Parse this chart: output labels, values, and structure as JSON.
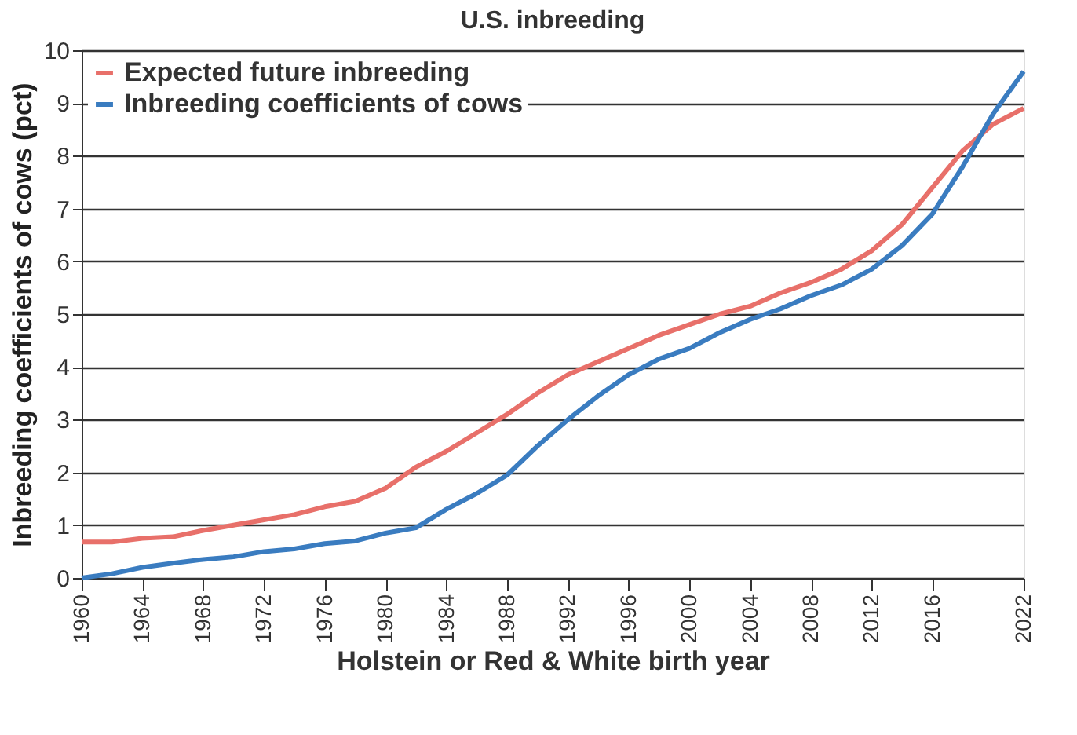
{
  "chart_data": {
    "type": "line",
    "title": "U.S. inbreeding",
    "xlabel": "Holstein or Red & White birth year",
    "ylabel": "Inbreeding coefficients of cows (pct)",
    "x": [
      1960,
      1962,
      1964,
      1966,
      1968,
      1970,
      1972,
      1974,
      1976,
      1978,
      1980,
      1982,
      1984,
      1986,
      1988,
      1990,
      1992,
      1994,
      1996,
      1998,
      2000,
      2002,
      2004,
      2006,
      2008,
      2010,
      2012,
      2014,
      2016,
      2018,
      2020,
      2022
    ],
    "series": [
      {
        "name": "Expected future inbreeding",
        "color": "#e8706a",
        "values": [
          0.68,
          0.68,
          0.75,
          0.78,
          0.9,
          1.0,
          1.1,
          1.2,
          1.35,
          1.45,
          1.7,
          2.1,
          2.4,
          2.75,
          3.1,
          3.5,
          3.85,
          4.1,
          4.35,
          4.6,
          4.8,
          5.0,
          5.15,
          5.4,
          5.6,
          5.85,
          6.2,
          6.7,
          7.4,
          8.1,
          8.6,
          8.9
        ]
      },
      {
        "name": "Inbreeding coefficients of cows",
        "color": "#3a7cc0",
        "values": [
          0,
          0.08,
          0.2,
          0.28,
          0.35,
          0.4,
          0.5,
          0.55,
          0.65,
          0.7,
          0.85,
          0.95,
          1.3,
          1.6,
          1.95,
          2.5,
          3.0,
          3.45,
          3.85,
          4.15,
          4.35,
          4.65,
          4.9,
          5.1,
          5.35,
          5.55,
          5.85,
          6.3,
          6.9,
          7.8,
          8.8,
          9.6
        ]
      }
    ],
    "xlim": [
      1960,
      2022
    ],
    "xticks": [
      1960,
      1964,
      1968,
      1972,
      1976,
      1980,
      1984,
      1988,
      1992,
      1996,
      2000,
      2004,
      2008,
      2012,
      2016,
      2022
    ],
    "ylim": [
      0,
      10
    ],
    "yticks": [
      0,
      1,
      2,
      3,
      4,
      5,
      6,
      7,
      8,
      9,
      10
    ],
    "grid": "y",
    "legend": "top left",
    "marker": "none",
    "line_style": "solid"
  }
}
